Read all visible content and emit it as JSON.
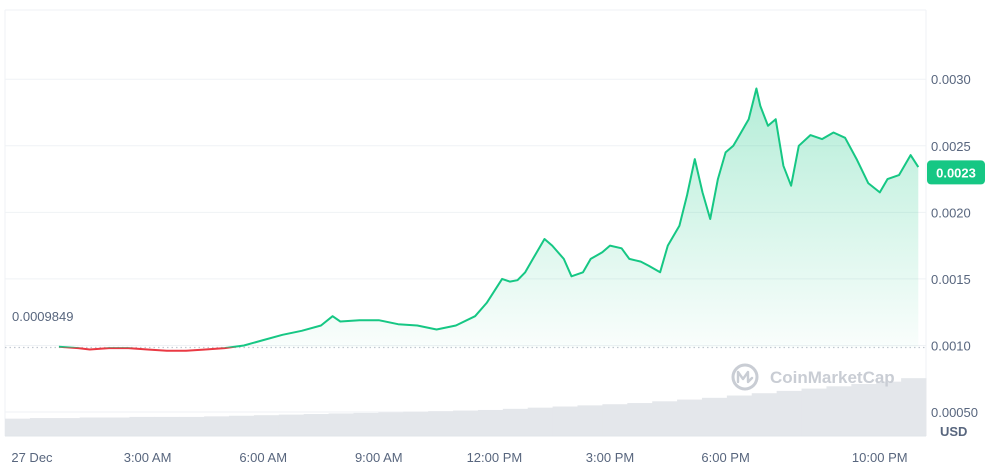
{
  "chart_data": {
    "type": "area",
    "currency": "USD",
    "watermark": "CoinMarketCap",
    "colors": {
      "up": "#16c784",
      "down": "#ea3943",
      "baseline": "#c1c7d0",
      "volume": "#e4e7eb",
      "grid": "#eff2f5",
      "axis_text": "#58667e"
    },
    "baseline": {
      "value": 0.0009849,
      "label": "0.0009849"
    },
    "current_price": {
      "value": 0.0023,
      "label": "0.0023"
    },
    "y_ticks": [
      "0.00050",
      "0.0010",
      "0.0015",
      "0.0020",
      "0.0025",
      "0.0030"
    ],
    "x_ticks": [
      "27 Dec",
      "3:00 AM",
      "6:00 AM",
      "9:00 AM",
      "12:00 PM",
      "3:00 PM",
      "6:00 PM",
      "10:00 PM"
    ],
    "x_tick_hours": [
      0,
      3,
      6,
      9,
      12,
      15,
      18,
      22
    ],
    "x_range_hours": [
      -0.7,
      23.2
    ],
    "y_range": [
      0.00032,
      0.00352
    ],
    "series": [
      {
        "x_hours": [
          0.7,
          1.2,
          1.5,
          2.0,
          2.5,
          3.0,
          3.5,
          4.0,
          4.5,
          5.0,
          5.5,
          6.0,
          6.5,
          7.0,
          7.5,
          7.8,
          8.0,
          8.5,
          9.0,
          9.5,
          10.0,
          10.5,
          11.0,
          11.5,
          11.8,
          12.0,
          12.2,
          12.4,
          12.6,
          12.8,
          13.0,
          13.3,
          13.5,
          13.8,
          14.0,
          14.3,
          14.5,
          14.8,
          15.0,
          15.3,
          15.5,
          15.8,
          16.0,
          16.3,
          16.5,
          16.8,
          17.0,
          17.2,
          17.4,
          17.6,
          17.8,
          18.0,
          18.2,
          18.3,
          18.5,
          18.6,
          18.8,
          18.9,
          19.1,
          19.3,
          19.5,
          19.7,
          19.9,
          20.2,
          20.5,
          20.8,
          21.1,
          21.4,
          21.7,
          22.0,
          22.2,
          22.5,
          22.8,
          23.0
        ],
        "values": [
          0.00099,
          0.00098,
          0.00097,
          0.00098,
          0.00098,
          0.00097,
          0.00096,
          0.00096,
          0.00097,
          0.00098,
          0.001,
          0.00104,
          0.00108,
          0.00111,
          0.00115,
          0.00122,
          0.00118,
          0.00119,
          0.00119,
          0.00116,
          0.00115,
          0.00112,
          0.00115,
          0.00122,
          0.00132,
          0.00141,
          0.0015,
          0.00148,
          0.00149,
          0.00155,
          0.00165,
          0.0018,
          0.00175,
          0.00165,
          0.00152,
          0.00155,
          0.00165,
          0.0017,
          0.00175,
          0.00173,
          0.00165,
          0.00163,
          0.0016,
          0.00155,
          0.00175,
          0.0019,
          0.00213,
          0.0024,
          0.00215,
          0.00195,
          0.00225,
          0.00245,
          0.0025,
          0.00255,
          0.00265,
          0.0027,
          0.00293,
          0.0028,
          0.00265,
          0.0027,
          0.00235,
          0.0022,
          0.0025,
          0.00258,
          0.00255,
          0.0026,
          0.00256,
          0.0024,
          0.00222,
          0.00215,
          0.00225,
          0.00228,
          0.00243,
          0.00234
        ]
      }
    ],
    "volume": [
      0.3,
      0.31,
      0.31,
      0.32,
      0.32,
      0.33,
      0.33,
      0.33,
      0.34,
      0.35,
      0.36,
      0.37,
      0.38,
      0.39,
      0.4,
      0.41,
      0.42,
      0.43,
      0.44,
      0.45,
      0.47,
      0.49,
      0.51,
      0.53,
      0.55,
      0.57,
      0.6,
      0.63,
      0.66,
      0.7,
      0.74,
      0.78,
      0.82,
      0.86,
      0.9,
      0.94,
      1.0
    ]
  }
}
